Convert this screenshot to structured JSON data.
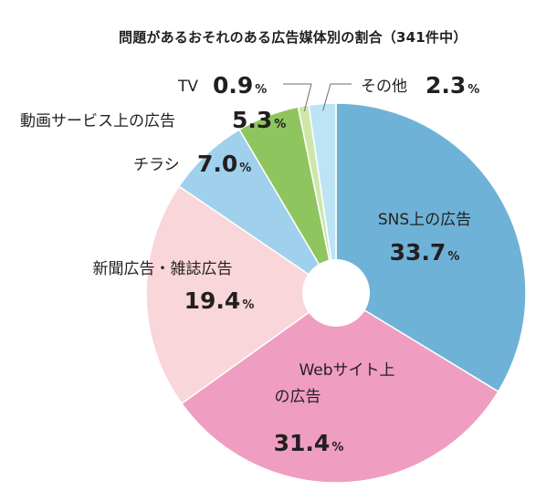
{
  "chart_data": {
    "type": "pie",
    "title": "問題があるおそれのある広告媒体別の割合（341件中）",
    "unit": "%",
    "slices": [
      {
        "label": "SNS上の広告",
        "value": 33.7,
        "value_text": "33.7",
        "color": "#6fb2d7"
      },
      {
        "label": "Webサイト上の広告",
        "value": 31.4,
        "value_text": "31.4",
        "color": "#ef9dc0"
      },
      {
        "label": "新聞広告・雑誌広告",
        "value": 19.4,
        "value_text": "19.4",
        "color": "#f9d6d9"
      },
      {
        "label": "チラシ",
        "value": 7.0,
        "value_text": "7.0",
        "color": "#9fd0ec"
      },
      {
        "label": "動画サービス上の広告",
        "value": 5.3,
        "value_text": "5.3",
        "color": "#8fc55e"
      },
      {
        "label": "TV",
        "value": 0.9,
        "value_text": "0.9",
        "color": "#cfe6a8"
      },
      {
        "label": "その他",
        "value": 2.3,
        "value_text": "2.3",
        "color": "#bde4f5"
      }
    ]
  }
}
